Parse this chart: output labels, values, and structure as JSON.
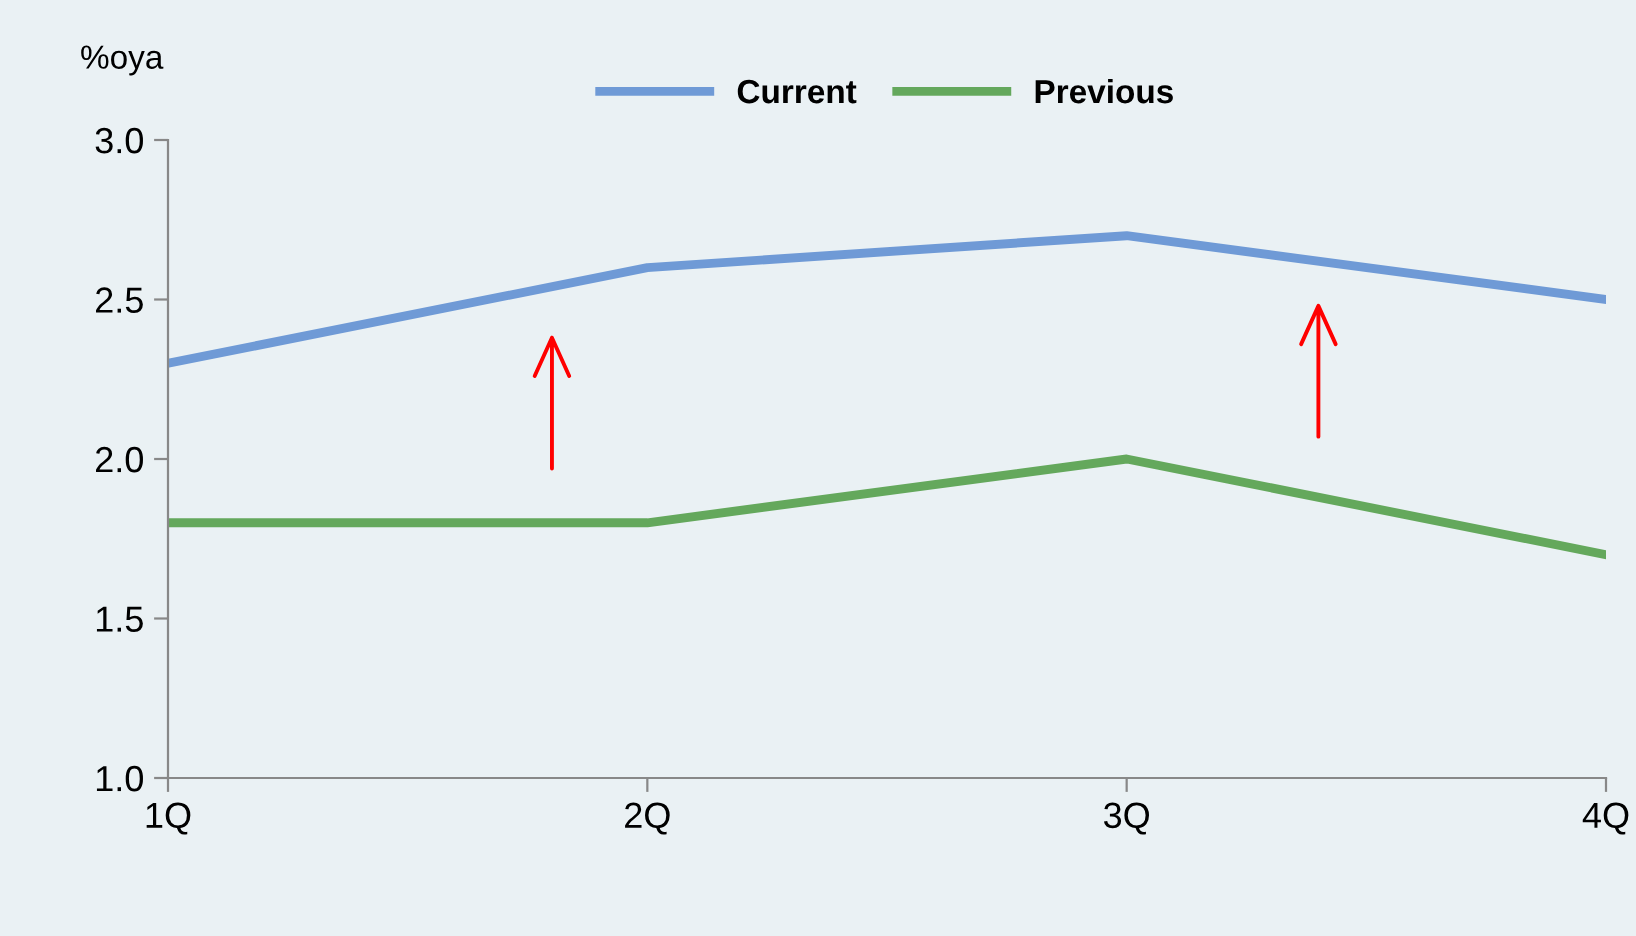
{
  "chart_data": {
    "type": "line",
    "ylabel": "%oya",
    "categories": [
      "1Q",
      "2Q",
      "3Q",
      "4Q"
    ],
    "series": [
      {
        "name": "Current",
        "color": "#6f9ad6",
        "values": [
          2.3,
          2.6,
          2.7,
          2.5
        ]
      },
      {
        "name": "Previous",
        "color": "#64a85c",
        "values": [
          1.8,
          1.8,
          2.0,
          1.7
        ]
      }
    ],
    "ylim": [
      1.0,
      3.0
    ],
    "yticks": [
      {
        "value": 1.0,
        "label": "1.0"
      },
      {
        "value": 1.5,
        "label": "1.5"
      },
      {
        "value": 2.0,
        "label": "2.0"
      },
      {
        "value": 2.5,
        "label": "2.5"
      },
      {
        "value": 3.0,
        "label": "3.0"
      }
    ],
    "grid": false,
    "legend": "top",
    "marker": "none",
    "line_style": "solid"
  }
}
